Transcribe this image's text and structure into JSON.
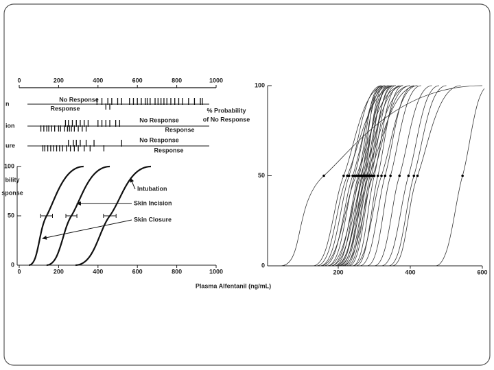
{
  "xlabel": "Plasma Alfentanil (ng/mL)",
  "chart_data": [
    {
      "type": "strip",
      "xlim": [
        0,
        1000
      ],
      "xticks": [
        0,
        200,
        400,
        600,
        800,
        1000
      ],
      "color": "#111111",
      "rows": [
        {
          "label": "n",
          "upper_label": "No Response",
          "lower_label": "Response",
          "no_response": [
            395,
            420,
            450,
            470,
            500,
            520,
            560,
            580,
            600,
            620,
            640,
            650,
            665,
            690,
            705,
            720,
            735,
            750,
            770,
            790,
            810,
            830,
            860,
            890,
            920,
            930
          ],
          "response": [
            440,
            460
          ]
        },
        {
          "label": "ion",
          "upper_label": "No Response",
          "lower_label": "Response",
          "no_response": [
            235,
            250,
            270,
            290,
            310,
            330,
            350,
            400,
            420,
            440,
            460,
            490,
            510
          ],
          "response": [
            110,
            125,
            140,
            150,
            165,
            180,
            200,
            210,
            230,
            245,
            255,
            265,
            280,
            300,
            320,
            340
          ]
        },
        {
          "label": "ure",
          "upper_label": "No Response",
          "lower_label": "Response",
          "no_response": [
            250,
            275,
            290,
            310,
            340,
            380,
            520
          ],
          "response": [
            120,
            130,
            145,
            160,
            175,
            190,
            205,
            220,
            240,
            260,
            280,
            300,
            330,
            360,
            430
          ]
        }
      ]
    },
    {
      "type": "line",
      "xlim": [
        0,
        1000
      ],
      "xticks": [
        0,
        200,
        400,
        600,
        800,
        1000
      ],
      "ylim": [
        0,
        100
      ],
      "yticks": [
        0,
        50,
        100
      ],
      "ylabel": [
        "bility",
        "sponse"
      ],
      "color": "#111111",
      "series": [
        {
          "name": "Skin Closure",
          "x": [
            49,
            139,
            327
          ],
          "values": [
            0,
            50,
            100
          ],
          "xerr": 30
        },
        {
          "name": "Skin Incision",
          "x": [
            139,
            265,
            460
          ],
          "values": [
            0,
            50,
            100
          ],
          "xerr": 28
        },
        {
          "name": "Intubation",
          "x": [
            286,
            460,
            669
          ],
          "values": [
            0,
            50,
            100
          ],
          "xerr": 32
        }
      ]
    },
    {
      "type": "line",
      "xlim": [
        0,
        600
      ],
      "xticks": [
        200,
        400,
        600
      ],
      "ylim": [
        0,
        100
      ],
      "yticks": [
        0,
        50,
        100
      ],
      "ylabel": [
        "% Probability",
        "of No Response"
      ],
      "color": "#333333",
      "series": [
        {
          "x": [
            40,
            160,
            600
          ],
          "values": [
            0,
            50,
            100
          ]
        },
        {
          "x": [
            130,
            215,
            330
          ],
          "values": [
            0,
            50,
            100
          ]
        },
        {
          "x": [
            140,
            225,
            360
          ],
          "values": [
            0,
            50,
            100
          ]
        },
        {
          "x": [
            150,
            230,
            320
          ],
          "values": [
            0,
            50,
            100
          ]
        },
        {
          "x": [
            160,
            240,
            340
          ],
          "values": [
            0,
            50,
            100
          ]
        },
        {
          "x": [
            170,
            245,
            330
          ],
          "values": [
            0,
            50,
            100
          ]
        },
        {
          "x": [
            150,
            250,
            380
          ],
          "values": [
            0,
            50,
            100
          ]
        },
        {
          "x": [
            180,
            255,
            320
          ],
          "values": [
            0,
            50,
            100
          ]
        },
        {
          "x": [
            190,
            258,
            330
          ],
          "values": [
            0,
            50,
            100
          ]
        },
        {
          "x": [
            170,
            262,
            350
          ],
          "values": [
            0,
            50,
            100
          ]
        },
        {
          "x": [
            200,
            265,
            320
          ],
          "values": [
            0,
            50,
            100
          ]
        },
        {
          "x": [
            195,
            268,
            340
          ],
          "values": [
            0,
            50,
            100
          ]
        },
        {
          "x": [
            180,
            270,
            380
          ],
          "values": [
            0,
            50,
            100
          ]
        },
        {
          "x": [
            205,
            272,
            330
          ],
          "values": [
            0,
            50,
            100
          ]
        },
        {
          "x": [
            210,
            275,
            345
          ],
          "values": [
            0,
            50,
            100
          ]
        },
        {
          "x": [
            190,
            278,
            400
          ],
          "values": [
            0,
            50,
            100
          ]
        },
        {
          "x": [
            215,
            280,
            340
          ],
          "values": [
            0,
            50,
            100
          ]
        },
        {
          "x": [
            220,
            283,
            355
          ],
          "values": [
            0,
            50,
            100
          ]
        },
        {
          "x": [
            200,
            285,
            420
          ],
          "values": [
            0,
            50,
            100
          ]
        },
        {
          "x": [
            225,
            288,
            350
          ],
          "values": [
            0,
            50,
            100
          ]
        },
        {
          "x": [
            230,
            292,
            360
          ],
          "values": [
            0,
            50,
            100
          ]
        },
        {
          "x": [
            210,
            296,
            400
          ],
          "values": [
            0,
            50,
            100
          ]
        },
        {
          "x": [
            240,
            300,
            370
          ],
          "values": [
            0,
            50,
            100
          ]
        },
        {
          "x": [
            250,
            310,
            380
          ],
          "values": [
            0,
            50,
            100
          ]
        },
        {
          "x": [
            240,
            320,
            420
          ],
          "values": [
            0,
            50,
            100
          ]
        },
        {
          "x": [
            260,
            330,
            410
          ],
          "values": [
            0,
            50,
            100
          ]
        },
        {
          "x": [
            280,
            345,
            430
          ],
          "values": [
            0,
            50,
            100
          ]
        },
        {
          "x": [
            300,
            370,
            460
          ],
          "values": [
            0,
            50,
            100
          ]
        },
        {
          "x": [
            320,
            395,
            480
          ],
          "values": [
            0,
            50,
            100
          ]
        },
        {
          "x": [
            340,
            410,
            500
          ],
          "values": [
            0,
            50,
            100
          ]
        },
        {
          "x": [
            350,
            420,
            540
          ],
          "values": [
            0,
            50,
            100
          ]
        },
        {
          "x": [
            470,
            545,
            620
          ],
          "values": [
            0,
            50,
            100
          ]
        }
      ]
    }
  ]
}
